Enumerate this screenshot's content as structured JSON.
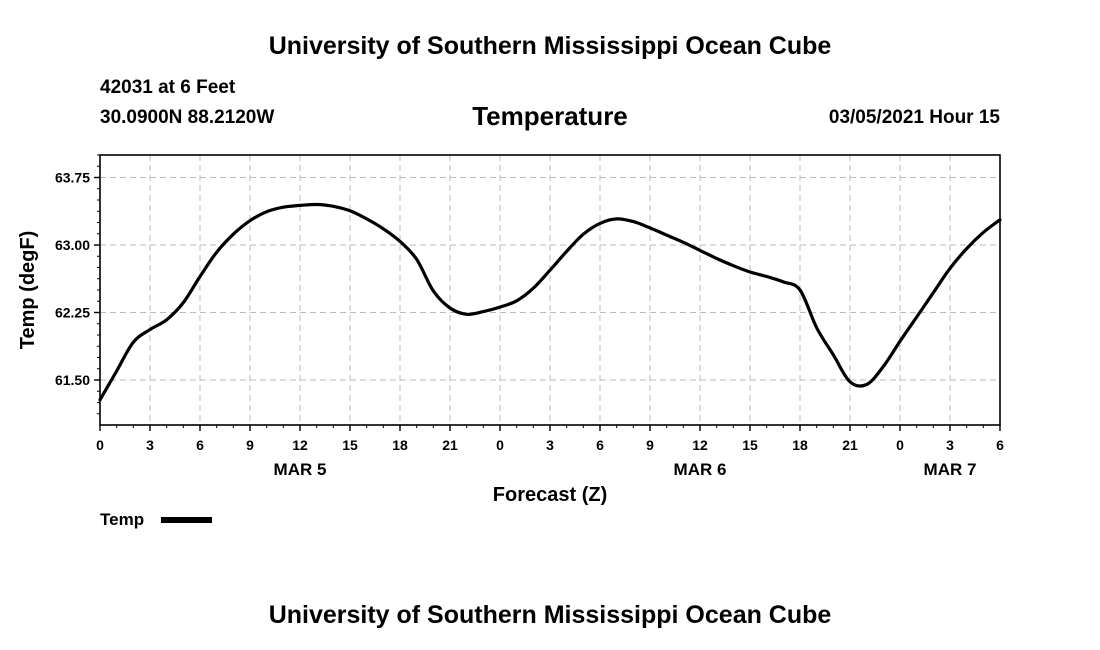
{
  "header": {
    "title": "University of Southern Mississippi Ocean Cube",
    "station": "42031 at 6 Feet",
    "location": "30.0900N 88.2120W",
    "datetime": "03/05/2021 Hour 15"
  },
  "footer": {
    "title": "University of Southern Mississippi Ocean Cube"
  },
  "chart_data": {
    "type": "line",
    "title": "Temperature",
    "xlabel": "Forecast (Z)",
    "ylabel": "Temp (degF)",
    "xlim": [
      0,
      54
    ],
    "ylim": [
      61.0,
      64.0
    ],
    "yticks": [
      "61.50",
      "62.25",
      "63.00",
      "63.75"
    ],
    "ytick_values": [
      61.5,
      62.25,
      63.0,
      63.75
    ],
    "xticks": [
      "0",
      "3",
      "6",
      "9",
      "12",
      "15",
      "18",
      "21",
      "0",
      "3",
      "6",
      "9",
      "12",
      "15",
      "18",
      "21",
      "0",
      "3",
      "6"
    ],
    "date_labels": [
      {
        "label": "MAR 5",
        "hour": 12
      },
      {
        "label": "MAR 6",
        "hour": 36
      },
      {
        "label": "MAR 7",
        "hour": 51
      }
    ],
    "grid": true,
    "legend": "bottom-left",
    "color": "#000000",
    "series": [
      {
        "name": "Temp",
        "x": [
          0,
          1,
          2,
          3,
          4,
          5,
          6,
          7,
          8,
          9,
          10,
          11,
          12,
          13,
          14,
          15,
          16,
          17,
          18,
          19,
          20,
          21,
          22,
          23,
          24,
          25,
          26,
          27,
          28,
          29,
          30,
          31,
          32,
          33,
          34,
          35,
          36,
          37,
          38,
          39,
          40,
          41,
          42,
          43,
          44,
          45,
          46,
          47,
          48,
          49,
          50,
          51,
          52,
          53,
          54
        ],
        "values": [
          61.28,
          61.6,
          61.92,
          62.06,
          62.17,
          62.36,
          62.65,
          62.92,
          63.12,
          63.27,
          63.37,
          63.42,
          63.44,
          63.45,
          63.43,
          63.38,
          63.29,
          63.18,
          63.04,
          62.84,
          62.49,
          62.3,
          62.23,
          62.26,
          62.31,
          62.38,
          62.52,
          62.72,
          62.93,
          63.12,
          63.24,
          63.29,
          63.26,
          63.19,
          63.11,
          63.03,
          62.94,
          62.85,
          62.77,
          62.7,
          62.65,
          62.59,
          62.5,
          62.08,
          61.78,
          61.48,
          61.45,
          61.65,
          61.93,
          62.2,
          62.47,
          62.74,
          62.96,
          63.14,
          63.28
        ]
      }
    ]
  }
}
